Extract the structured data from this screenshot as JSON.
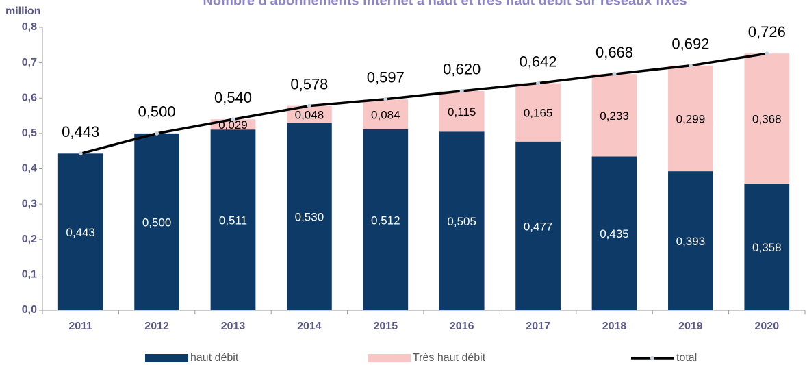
{
  "chart_data": {
    "type": "stacked_bar_line",
    "title": "Nombre d'abonnements internet à haut et très haut débit sur réseaux fixes",
    "y_label": "million",
    "categories": [
      "2011",
      "2012",
      "2013",
      "2014",
      "2015",
      "2016",
      "2017",
      "2018",
      "2019",
      "2020"
    ],
    "series": [
      {
        "name": "haut débit",
        "color": "#0d3a66",
        "kind": "bar",
        "values": [
          0.443,
          0.5,
          0.511,
          0.53,
          0.512,
          0.505,
          0.477,
          0.435,
          0.393,
          0.358
        ],
        "value_labels": [
          "0,443",
          "0,500",
          "0,511",
          "0,530",
          "0,512",
          "0,505",
          "0,477",
          "0,435",
          "0,393",
          "0,358"
        ]
      },
      {
        "name": "Très haut débit",
        "color": "#f9c6c6",
        "kind": "bar",
        "values": [
          null,
          null,
          0.029,
          0.048,
          0.084,
          0.115,
          0.165,
          0.233,
          0.299,
          0.368
        ],
        "value_labels": [
          null,
          null,
          "0,029",
          "0,048",
          "0,084",
          "0,115",
          "0,165",
          "0,233",
          "0,299",
          "0,368"
        ]
      },
      {
        "name": "total",
        "color": "#000000",
        "kind": "line",
        "values": [
          0.443,
          0.5,
          0.54,
          0.578,
          0.597,
          0.62,
          0.642,
          0.668,
          0.692,
          0.726
        ],
        "value_labels": [
          "0,443",
          "0,500",
          "0,540",
          "0,578",
          "0,597",
          "0,620",
          "0,642",
          "0,668",
          "0,692",
          "0,726"
        ]
      }
    ],
    "ylim": [
      0,
      0.8
    ],
    "yticks": [
      {
        "value": 0,
        "label": "0,0"
      },
      {
        "value": 0.1,
        "label": "0,1"
      },
      {
        "value": 0.2,
        "label": "0,2"
      },
      {
        "value": 0.3,
        "label": "0,3"
      },
      {
        "value": 0.4,
        "label": "0,4"
      },
      {
        "value": 0.5,
        "label": "0,5"
      },
      {
        "value": 0.6,
        "label": "0,6"
      },
      {
        "value": 0.7,
        "label": "0,7"
      },
      {
        "value": 0.8,
        "label": "0,8"
      }
    ],
    "legend": "bottom"
  }
}
